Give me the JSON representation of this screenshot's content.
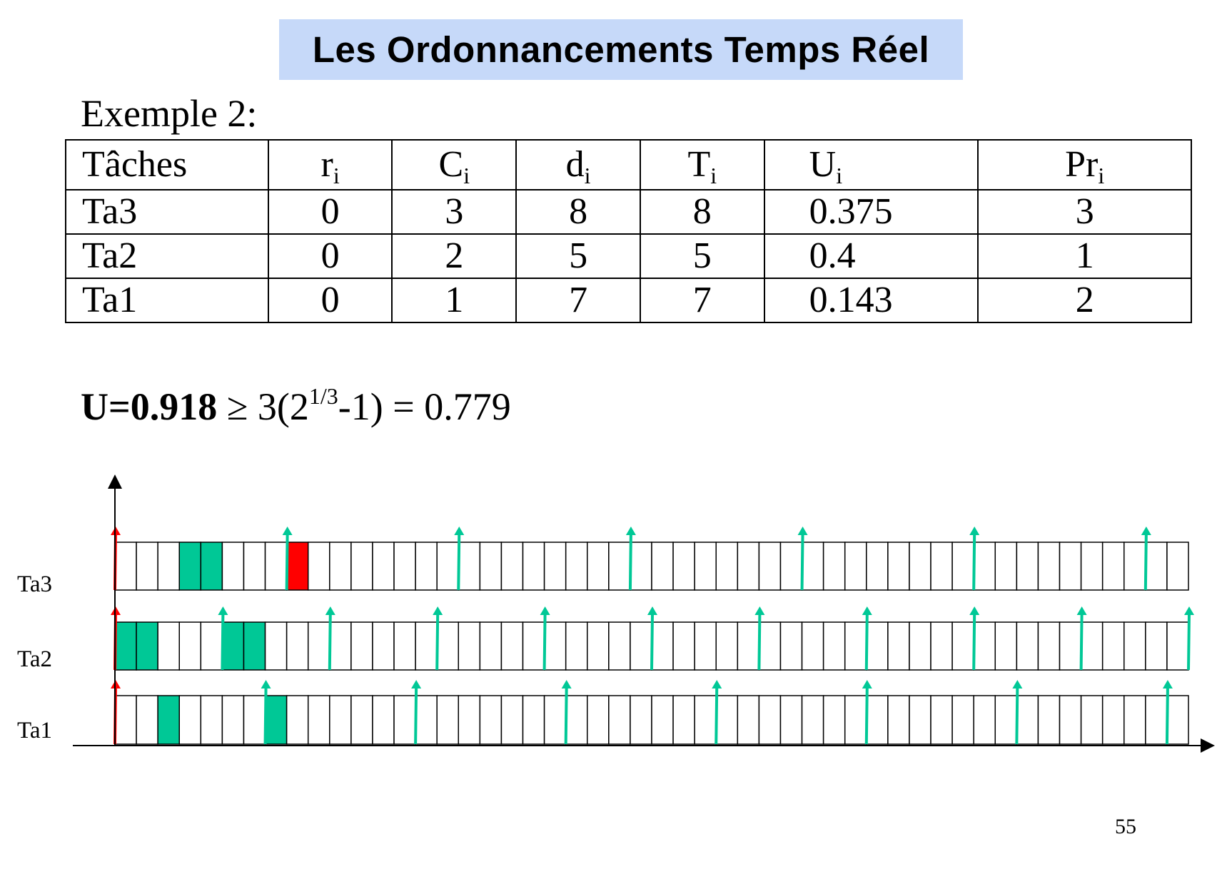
{
  "header": {
    "title": "Les Ordonnancements Temps Réel"
  },
  "example": {
    "label": "Exemple 2:"
  },
  "table": {
    "columns": [
      {
        "base": "Tâches",
        "sub": ""
      },
      {
        "base": "r",
        "sub": "i"
      },
      {
        "base": "C",
        "sub": "i"
      },
      {
        "base": "d",
        "sub": "i"
      },
      {
        "base": "T",
        "sub": "i"
      },
      {
        "base": "U",
        "sub": "i"
      },
      {
        "base": "Pr",
        "sub": "i"
      }
    ],
    "rows": [
      [
        "Ta3",
        "0",
        "3",
        "8",
        "8",
        "0.375",
        "3"
      ],
      [
        "Ta2",
        "0",
        "2",
        "5",
        "5",
        "0.4",
        "1"
      ],
      [
        "Ta1",
        "0",
        "1",
        "7",
        "7",
        "0.143",
        "2"
      ]
    ]
  },
  "formula": {
    "lhs": "U=0.918",
    "op": " ≥ 3(2",
    "exp": "1/3",
    "rest": "-1) = 0.779"
  },
  "timeline": {
    "slots": 50,
    "colors": {
      "exec": "#00c896",
      "miss": "#ff0000",
      "release": "#00c896",
      "first_release": "#ff0000"
    },
    "tasks": [
      {
        "name": "Ta3",
        "executed": [
          3,
          4
        ],
        "missed": [
          8
        ],
        "releases": [
          0,
          8,
          16,
          24,
          32,
          40,
          48
        ]
      },
      {
        "name": "Ta2",
        "executed": [
          0,
          1,
          5,
          6
        ],
        "missed": [],
        "releases": [
          0,
          5,
          10,
          15,
          20,
          25,
          30,
          35,
          40,
          45,
          50
        ]
      },
      {
        "name": "Ta1",
        "executed": [
          2,
          7
        ],
        "missed": [],
        "releases": [
          0,
          7,
          14,
          21,
          28,
          35,
          42,
          49
        ]
      }
    ]
  },
  "footer": {
    "page": "55"
  }
}
